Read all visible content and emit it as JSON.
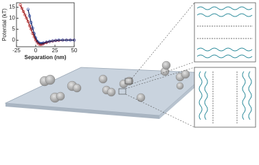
{
  "chart_data": {
    "type": "scatter",
    "x_label": "Separation (nm)",
    "y_label": "Potential (kT)",
    "xlim": [
      -25,
      50
    ],
    "ylim": [
      -3,
      17
    ],
    "xticks": [
      -25,
      0,
      25,
      50
    ],
    "yticks": [
      0,
      5,
      10,
      15
    ],
    "series": [
      {
        "color": "#d03030",
        "line": false,
        "x": [
          -20,
          -18,
          -16,
          -14,
          -12,
          -10,
          -8,
          -6,
          -4,
          -2,
          0,
          2,
          4,
          6,
          8,
          10,
          14,
          18,
          22,
          26,
          30,
          35,
          40,
          45,
          50
        ],
        "values": [
          16,
          14.5,
          13,
          11.5,
          10,
          8.5,
          6.5,
          5,
          3,
          1.5,
          0,
          -1,
          -1.8,
          -2,
          -1.9,
          -1.6,
          -1.1,
          -0.7,
          -0.4,
          -0.2,
          -0.1,
          0,
          0,
          0,
          0
        ]
      },
      {
        "color": "#3050b0",
        "line": false,
        "x": [
          -10,
          -8,
          -6,
          -4,
          -2,
          0,
          2,
          4,
          6,
          8,
          10,
          14,
          18,
          22,
          26,
          30,
          35,
          40,
          45,
          50
        ],
        "values": [
          14,
          11,
          8,
          5.5,
          3,
          1,
          -0.5,
          -1.2,
          -1.5,
          -1.5,
          -1.3,
          -0.9,
          -0.6,
          -0.3,
          -0.1,
          0,
          0,
          0,
          0,
          0
        ]
      },
      {
        "color": "#8a1010",
        "line": true,
        "x": [
          -20,
          -15,
          -10,
          -5,
          0,
          3,
          6,
          10,
          15,
          20,
          30,
          40,
          50
        ],
        "values": [
          16,
          12.3,
          8.5,
          4,
          0,
          -1.4,
          -2,
          -1.6,
          -1,
          -0.5,
          -0.1,
          0,
          0
        ]
      },
      {
        "color": "#102060",
        "line": true,
        "x": [
          -10,
          -6,
          -2,
          0,
          3,
          6,
          9,
          14,
          20,
          30,
          40,
          50
        ],
        "values": [
          14,
          8,
          3,
          1,
          -0.8,
          -1.5,
          -1.4,
          -0.9,
          -0.45,
          0,
          0,
          0
        ]
      }
    ]
  }
}
